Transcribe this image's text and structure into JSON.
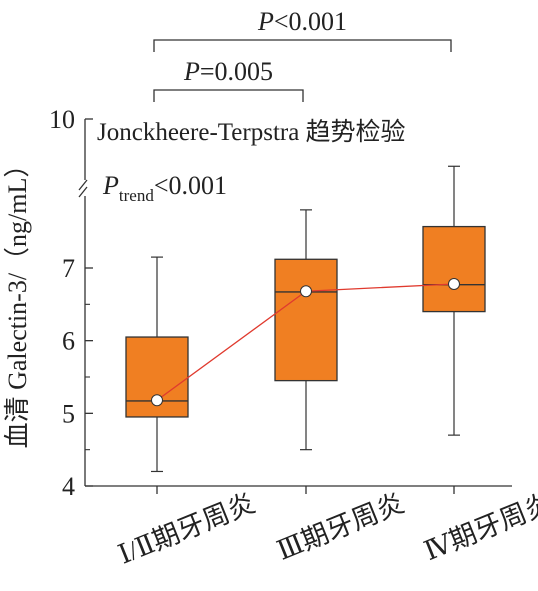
{
  "chart_data": {
    "type": "box",
    "title": "",
    "ylabel": "血清 Galectin-3/（ng/mL）",
    "xlabel": "",
    "y_ticks": [
      4,
      5,
      6,
      7,
      10
    ],
    "y_axis_break": true,
    "categories": [
      "Ⅰ/Ⅱ期牙周炎",
      "Ⅲ期牙周炎",
      "Ⅳ期牙周炎"
    ],
    "boxes": [
      {
        "whisker_low": 4.2,
        "q1": 4.95,
        "median": 5.17,
        "q3": 6.05,
        "whisker_high": 7.15,
        "mean": 5.18
      },
      {
        "whisker_low": 4.5,
        "q1": 5.45,
        "median": 6.67,
        "q3": 7.12,
        "whisker_high": 7.8,
        "mean": 6.68
      },
      {
        "whisker_low": 4.7,
        "q1": 6.4,
        "median": 6.77,
        "q3": 7.57,
        "whisker_high": 8.4,
        "mean": 6.78
      }
    ],
    "trend_line": "mean",
    "annotations": {
      "test_name": "Jonckheere-Terpstra 趋势检验",
      "p_trend_label": "P",
      "p_trend_subscript": "trend",
      "p_trend_value": "<0.001",
      "comparisons": [
        {
          "from": 0,
          "to": 1,
          "p_label": "P",
          "p_value": "=0.005"
        },
        {
          "from": 0,
          "to": 2,
          "p_label": "P",
          "p_value": "<0.001"
        }
      ]
    },
    "colors": {
      "box_fill": "#F07F22",
      "box_stroke": "#333333",
      "trend_line": "#E03A2E",
      "mean_marker": "#ffffff"
    }
  }
}
